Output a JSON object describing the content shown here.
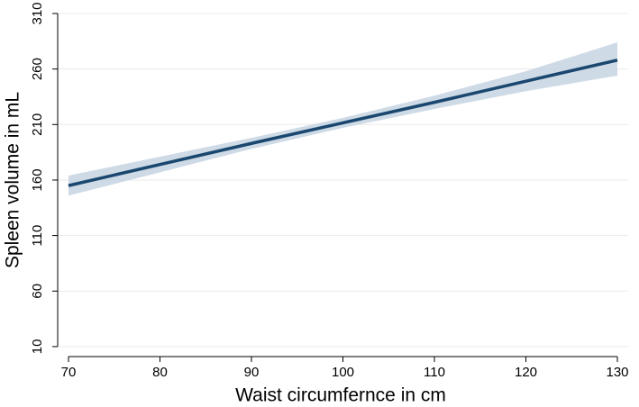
{
  "chart_data": {
    "type": "line",
    "xlabel": "Waist circumfernce in cm",
    "ylabel": "Spleen volume in mL",
    "x": [
      70,
      80,
      90,
      100,
      110,
      120,
      130
    ],
    "series": [
      {
        "color": "#1a476f",
        "values": [
          155,
          174,
          193,
          211.5,
          230,
          249,
          268
        ]
      }
    ],
    "band": {
      "color": "#c6d4e2",
      "lower": [
        146,
        167,
        188,
        207,
        224,
        240,
        254
      ],
      "upper": [
        164,
        181,
        198,
        216,
        236,
        258,
        284
      ]
    },
    "xlim": [
      70,
      130
    ],
    "xticks": [
      70,
      80,
      90,
      100,
      110,
      120,
      130
    ],
    "ylim": [
      1,
      310
    ],
    "yticks": [
      10,
      60,
      110,
      160,
      210,
      260,
      310
    ],
    "grid": true
  }
}
